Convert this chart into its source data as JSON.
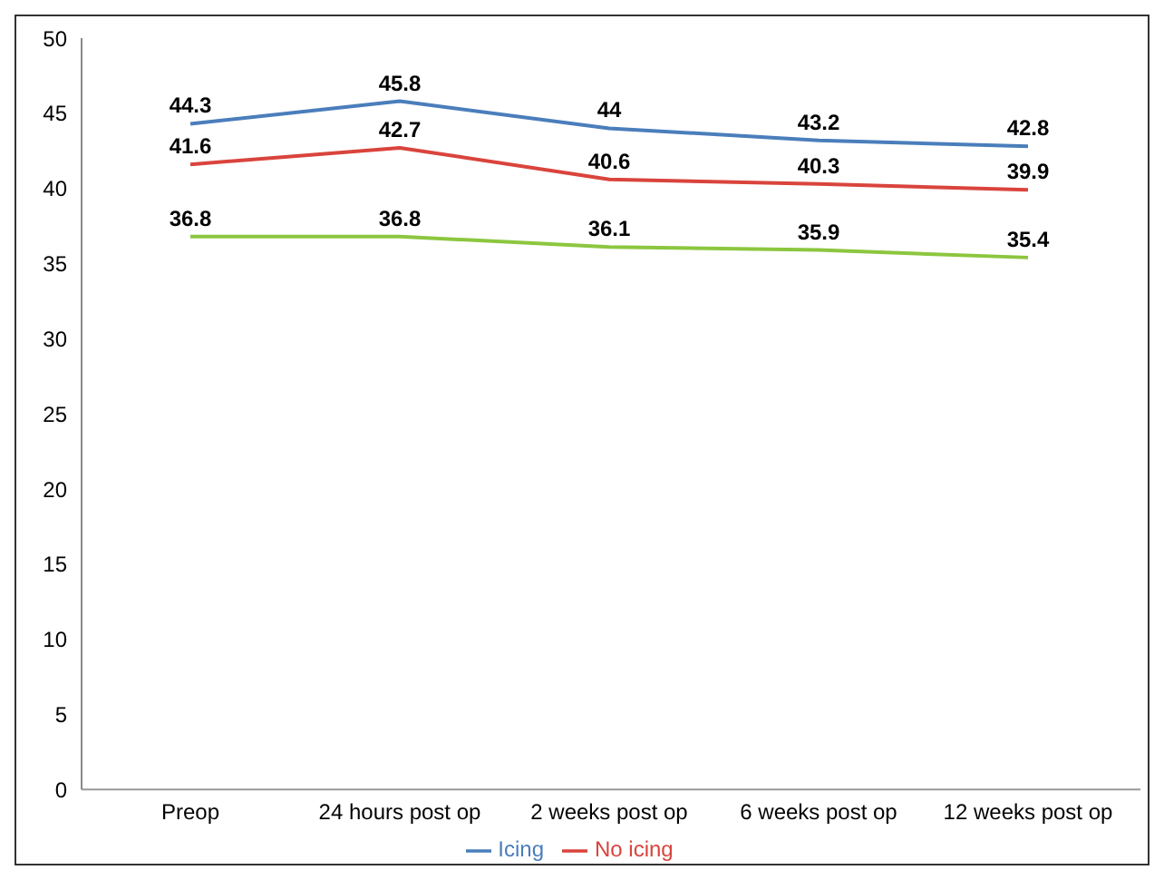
{
  "chart_data": {
    "type": "line",
    "categories": [
      "Preop",
      "24 hours post op",
      "2 weeks post op",
      "6 weeks post op",
      "12 weeks post op"
    ],
    "series": [
      {
        "name": "Icing",
        "color": "#4a7ebb",
        "values": [
          44.3,
          45.8,
          44,
          43.2,
          42.8
        ]
      },
      {
        "name": "No icing",
        "color": "#d9443c",
        "values": [
          41.6,
          42.7,
          40.6,
          40.3,
          39.9
        ]
      },
      {
        "color": "#8cc63f",
        "values": [
          36.8,
          36.8,
          36.1,
          35.9,
          35.4
        ]
      }
    ],
    "ylim": [
      0,
      50
    ],
    "yticks": [
      0,
      5,
      10,
      15,
      20,
      25,
      30,
      35,
      40,
      45,
      50
    ],
    "grid": false,
    "legend": "bottom",
    "marker": "none",
    "line_style": "solid",
    "data_labels": true
  }
}
